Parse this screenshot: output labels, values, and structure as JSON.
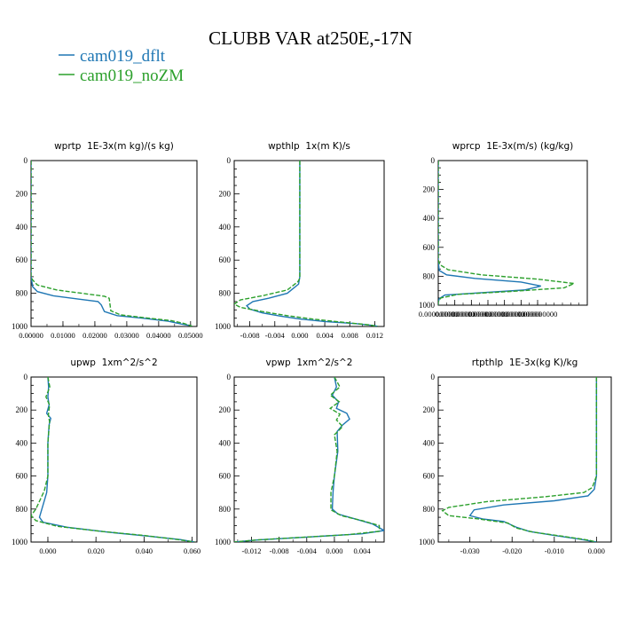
{
  "figure": {
    "title": "CLUBB VAR at250E,-17N",
    "legend": [
      {
        "name": "cam019_dflt",
        "color": "#1f77b4"
      },
      {
        "name": "cam019_noZM",
        "color": "#2ca02c"
      }
    ]
  },
  "chart_data": [
    {
      "type": "line",
      "title": "wprtp  1E-3x(m kg)/(s kg)",
      "xlim": [
        0,
        0.052
      ],
      "ylim": [
        1000,
        0
      ],
      "xticks": [
        "0.00000",
        "0.01000",
        "0.02000",
        "0.03000",
        "0.04000",
        "0.05000"
      ],
      "xtick_values": [
        0,
        0.01,
        0.02,
        0.03,
        0.04,
        0.05
      ],
      "yticks": [
        "0",
        "200",
        "400",
        "600",
        "800",
        "1000"
      ],
      "ytick_values": [
        0,
        200,
        400,
        600,
        800,
        1000
      ],
      "series": [
        {
          "name": "cam019_dflt",
          "color": "#1f77b4",
          "dashed": false,
          "points": [
            [
              0,
              0
            ],
            [
              0,
              300
            ],
            [
              0,
              600
            ],
            [
              0,
              700
            ],
            [
              0.0005,
              760
            ],
            [
              0.002,
              790
            ],
            [
              0.007,
              815
            ],
            [
              0.015,
              835
            ],
            [
              0.021,
              850
            ],
            [
              0.022,
              870
            ],
            [
              0.023,
              910
            ],
            [
              0.027,
              935
            ],
            [
              0.035,
              950
            ],
            [
              0.043,
              968
            ],
            [
              0.047,
              985
            ],
            [
              0.05,
              995
            ],
            [
              0.0505,
              1000
            ]
          ]
        },
        {
          "name": "cam019_noZM",
          "color": "#2ca02c",
          "dashed": true,
          "points": [
            [
              0,
              0
            ],
            [
              0,
              300
            ],
            [
              0,
              600
            ],
            [
              0,
              700
            ],
            [
              0.0005,
              720
            ],
            [
              0.002,
              750
            ],
            [
              0.008,
              780
            ],
            [
              0.016,
              800
            ],
            [
              0.023,
              818
            ],
            [
              0.0245,
              830
            ],
            [
              0.025,
              905
            ],
            [
              0.028,
              930
            ],
            [
              0.036,
              948
            ],
            [
              0.044,
              965
            ],
            [
              0.048,
              982
            ],
            [
              0.05,
              995
            ],
            [
              0.0505,
              1000
            ]
          ]
        }
      ]
    },
    {
      "type": "line",
      "title": "wpthlp  1x(m K)/s",
      "xlim": [
        -0.0105,
        0.0135
      ],
      "ylim": [
        1000,
        0
      ],
      "xticks": [
        "-0.008",
        "-0.004",
        "0.000",
        "0.004",
        "0.008",
        "0.012"
      ],
      "xtick_values": [
        -0.008,
        -0.004,
        0,
        0.004,
        0.008,
        0.012
      ],
      "yticks": [
        "0",
        "200",
        "400",
        "600",
        "800",
        "1000"
      ],
      "ytick_values": [
        0,
        200,
        400,
        600,
        800,
        1000
      ],
      "series": [
        {
          "name": "cam019_dflt",
          "color": "#1f77b4",
          "dashed": false,
          "points": [
            [
              0,
              0
            ],
            [
              0,
              400
            ],
            [
              0,
              700
            ],
            [
              -0.0002,
              745
            ],
            [
              -0.002,
              800
            ],
            [
              -0.005,
              830
            ],
            [
              -0.0075,
              850
            ],
            [
              -0.0085,
              875
            ],
            [
              -0.008,
              895
            ],
            [
              -0.006,
              918
            ],
            [
              -0.003,
              938
            ],
            [
              0,
              955
            ],
            [
              0.004,
              970
            ],
            [
              0.009,
              983
            ],
            [
              0.012,
              995
            ],
            [
              0.0125,
              1000
            ]
          ]
        },
        {
          "name": "cam019_noZM",
          "color": "#2ca02c",
          "dashed": true,
          "points": [
            [
              0,
              0
            ],
            [
              0,
              400
            ],
            [
              0,
              710
            ],
            [
              -0.0003,
              730
            ],
            [
              -0.002,
              780
            ],
            [
              -0.006,
              815
            ],
            [
              -0.0095,
              840
            ],
            [
              -0.0105,
              865
            ],
            [
              -0.0095,
              885
            ],
            [
              -0.006,
              910
            ],
            [
              -0.002,
              935
            ],
            [
              0.002,
              955
            ],
            [
              0.007,
              975
            ],
            [
              0.011,
              990
            ],
            [
              0.0125,
              1000
            ]
          ]
        }
      ]
    },
    {
      "type": "line",
      "title": "wprcp  1E-3x(m/s) (kg/kg)",
      "xlim": [
        0,
        4.5e-07
      ],
      "ylim": [
        1000,
        0
      ],
      "xticks": [
        "0.000000000",
        "0.000000000",
        "0.000000000",
        "0.000000000",
        "0.000000000",
        "0.000000000",
        "0.000000000"
      ],
      "xtick_values": [
        0,
        5e-08,
        1e-07,
        1.5e-07,
        2e-07,
        2.5e-07,
        3e-07
      ],
      "yticks": [
        "0",
        "200",
        "400",
        "600",
        "800",
        "1000"
      ],
      "ytick_values": [
        0,
        200,
        400,
        600,
        800,
        1000
      ],
      "series": [
        {
          "name": "cam019_dflt",
          "color": "#1f77b4",
          "dashed": false,
          "points": [
            [
              0,
              0
            ],
            [
              0,
              500
            ],
            [
              0,
              700
            ],
            [
              3e-09,
              760
            ],
            [
              2.5e-08,
              790
            ],
            [
              1.1e-07,
              815
            ],
            [
              2.5e-07,
              840
            ],
            [
              3.1e-07,
              868
            ],
            [
              2.6e-07,
              895
            ],
            [
              1.2e-07,
              915
            ],
            [
              2e-08,
              930
            ],
            [
              3e-09,
              955
            ],
            [
              0,
              980
            ],
            [
              0,
              1000
            ]
          ]
        },
        {
          "name": "cam019_noZM",
          "color": "#2ca02c",
          "dashed": true,
          "points": [
            [
              0,
              0
            ],
            [
              0,
              500
            ],
            [
              0,
              690
            ],
            [
              5e-09,
              720
            ],
            [
              3e-08,
              755
            ],
            [
              1.3e-07,
              790
            ],
            [
              3e-07,
              820
            ],
            [
              4.1e-07,
              850
            ],
            [
              3.8e-07,
              880
            ],
            [
              2.2e-07,
              905
            ],
            [
              6e-08,
              925
            ],
            [
              8e-09,
              950
            ],
            [
              0,
              975
            ],
            [
              0,
              1000
            ]
          ]
        }
      ]
    },
    {
      "type": "line",
      "title": "upwp  1xm^2/s^2",
      "xlim": [
        -0.007,
        0.062
      ],
      "ylim": [
        1000,
        0
      ],
      "xticks": [
        "0.000",
        "0.020",
        "0.040",
        "0.060"
      ],
      "xtick_values": [
        0,
        0.02,
        0.04,
        0.06
      ],
      "yticks": [
        "0",
        "200",
        "400",
        "600",
        "800",
        "1000"
      ],
      "ytick_values": [
        0,
        200,
        400,
        600,
        800,
        1000
      ],
      "series": [
        {
          "name": "cam019_dflt",
          "color": "#1f77b4",
          "dashed": false,
          "points": [
            [
              0,
              0
            ],
            [
              0.0003,
              60
            ],
            [
              0,
              120
            ],
            [
              0.0005,
              170
            ],
            [
              -0.0005,
              220
            ],
            [
              0.0012,
              250
            ],
            [
              0.0005,
              290
            ],
            [
              0,
              400
            ],
            [
              0,
              600
            ],
            [
              -0.0005,
              700
            ],
            [
              -0.0025,
              800
            ],
            [
              -0.0035,
              850
            ],
            [
              -0.002,
              880
            ],
            [
              0.008,
              910
            ],
            [
              0.025,
              940
            ],
            [
              0.042,
              965
            ],
            [
              0.055,
              985
            ],
            [
              0.061,
              1000
            ]
          ]
        },
        {
          "name": "cam019_noZM",
          "color": "#2ca02c",
          "dashed": true,
          "points": [
            [
              0,
              0
            ],
            [
              0.0008,
              60
            ],
            [
              -0.0008,
              120
            ],
            [
              0.0007,
              170
            ],
            [
              0.0002,
              230
            ],
            [
              0.0007,
              270
            ],
            [
              0,
              400
            ],
            [
              0,
              600
            ],
            [
              -0.0015,
              690
            ],
            [
              -0.005,
              800
            ],
            [
              -0.007,
              840
            ],
            [
              -0.005,
              870
            ],
            [
              0.004,
              905
            ],
            [
              0.022,
              935
            ],
            [
              0.04,
              960
            ],
            [
              0.054,
              985
            ],
            [
              0.061,
              1000
            ]
          ]
        }
      ]
    },
    {
      "type": "line",
      "title": "vpwp  1xm^2/s^2",
      "xlim": [
        -0.0145,
        0.0072
      ],
      "ylim": [
        1000,
        0
      ],
      "xticks": [
        "-0.012",
        "-0.008",
        "-0.004",
        "0.000",
        "0.004"
      ],
      "xtick_values": [
        -0.012,
        -0.008,
        -0.004,
        0,
        0.004
      ],
      "yticks": [
        "0",
        "200",
        "400",
        "600",
        "800",
        "1000"
      ],
      "ytick_values": [
        0,
        200,
        400,
        600,
        800,
        1000
      ],
      "series": [
        {
          "name": "cam019_dflt",
          "color": "#1f77b4",
          "dashed": false,
          "points": [
            [
              0,
              0
            ],
            [
              0.0003,
              60
            ],
            [
              -0.0003,
              110
            ],
            [
              0.0006,
              150
            ],
            [
              0.0003,
              190
            ],
            [
              0.0018,
              220
            ],
            [
              0.0022,
              255
            ],
            [
              0.0012,
              290
            ],
            [
              0.0004,
              330
            ],
            [
              0.0005,
              450
            ],
            [
              0,
              600
            ],
            [
              -0.0002,
              700
            ],
            [
              -0.0003,
              800
            ],
            [
              0.0005,
              830
            ],
            [
              0.003,
              860
            ],
            [
              0.0055,
              890
            ],
            [
              0.0072,
              930
            ],
            [
              0.004,
              950
            ],
            [
              -0.004,
              970
            ],
            [
              -0.011,
              987
            ],
            [
              -0.0145,
              1000
            ]
          ]
        },
        {
          "name": "cam019_noZM",
          "color": "#2ca02c",
          "dashed": true,
          "points": [
            [
              0,
              0
            ],
            [
              0.0008,
              60
            ],
            [
              -0.0006,
              110
            ],
            [
              0.0007,
              150
            ],
            [
              -0.0006,
              190
            ],
            [
              0.0008,
              225
            ],
            [
              0.0003,
              260
            ],
            [
              0.0012,
              300
            ],
            [
              0,
              350
            ],
            [
              0.0004,
              450
            ],
            [
              0,
              600
            ],
            [
              -0.0005,
              700
            ],
            [
              -0.0005,
              805
            ],
            [
              0.001,
              840
            ],
            [
              0.004,
              870
            ],
            [
              0.0065,
              900
            ],
            [
              0.0065,
              935
            ],
            [
              0.002,
              955
            ],
            [
              -0.005,
              972
            ],
            [
              -0.0115,
              988
            ],
            [
              -0.0145,
              1000
            ]
          ]
        }
      ]
    },
    {
      "type": "line",
      "title": "rtpthlp  1E-3x(kg K)/kg",
      "xlim": [
        -0.0375,
        0.0035
      ],
      "ylim": [
        1000,
        0
      ],
      "xticks": [
        "-0.030",
        "-0.020",
        "-0.010",
        "0.000"
      ],
      "xtick_values": [
        -0.03,
        -0.02,
        -0.01,
        0
      ],
      "yticks": [
        "0",
        "200",
        "400",
        "600",
        "800",
        "1000"
      ],
      "ytick_values": [
        0,
        200,
        400,
        600,
        800,
        1000
      ],
      "series": [
        {
          "name": "cam019_dflt",
          "color": "#1f77b4",
          "dashed": false,
          "points": [
            [
              0,
              0
            ],
            [
              0,
              300
            ],
            [
              0,
              600
            ],
            [
              -0.0005,
              680
            ],
            [
              -0.002,
              720
            ],
            [
              -0.01,
              750
            ],
            [
              -0.022,
              775
            ],
            [
              -0.029,
              805
            ],
            [
              -0.03,
              840
            ],
            [
              -0.027,
              860
            ],
            [
              -0.022,
              875
            ],
            [
              -0.019,
              910
            ],
            [
              -0.016,
              935
            ],
            [
              -0.01,
              960
            ],
            [
              -0.004,
              982
            ],
            [
              0,
              1000
            ]
          ]
        },
        {
          "name": "cam019_noZM",
          "color": "#2ca02c",
          "dashed": true,
          "points": [
            [
              0,
              0
            ],
            [
              0,
              300
            ],
            [
              0,
              600
            ],
            [
              -0.001,
              670
            ],
            [
              -0.003,
              700
            ],
            [
              -0.012,
              725
            ],
            [
              -0.026,
              755
            ],
            [
              -0.035,
              790
            ],
            [
              -0.0365,
              810
            ],
            [
              -0.035,
              840
            ],
            [
              -0.028,
              860
            ],
            [
              -0.021,
              885
            ],
            [
              -0.019,
              915
            ],
            [
              -0.015,
              940
            ],
            [
              -0.008,
              965
            ],
            [
              -0.002,
              988
            ],
            [
              0,
              1000
            ]
          ]
        }
      ]
    }
  ]
}
